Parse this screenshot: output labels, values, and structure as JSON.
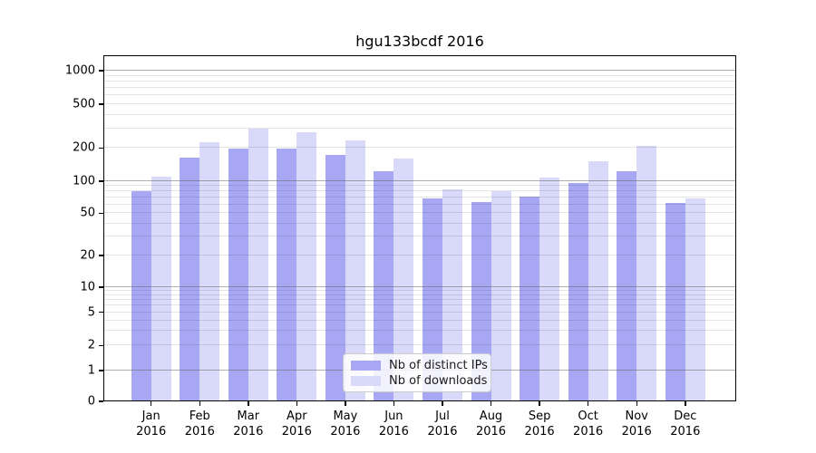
{
  "title": "hgu133bcdf 2016",
  "legend": {
    "items": [
      {
        "label": "Nb of distinct IPs",
        "color": "#a7a7f4"
      },
      {
        "label": "Nb of downloads",
        "color": "#d9d9fa"
      }
    ]
  },
  "chart_data": {
    "type": "bar",
    "title": "hgu133bcdf 2016",
    "categories": [
      "Jan",
      "Feb",
      "Mar",
      "Apr",
      "May",
      "Jun",
      "Jul",
      "Aug",
      "Sep",
      "Oct",
      "Nov",
      "Dec"
    ],
    "category_year": "2016",
    "series": [
      {
        "name": "Nb of distinct IPs",
        "color": "#a7a7f4",
        "values": [
          80,
          165,
          197,
          197,
          172,
          124,
          69,
          64,
          72,
          96,
          123,
          62
        ]
      },
      {
        "name": "Nb of downloads",
        "color": "#d9d9fa",
        "values": [
          110,
          225,
          300,
          280,
          235,
          162,
          84,
          80,
          108,
          152,
          210,
          69
        ]
      }
    ],
    "yscale": "symlog",
    "yticks": [
      0,
      1,
      2,
      5,
      10,
      20,
      50,
      100,
      200,
      500,
      1000
    ],
    "minor_gridlines": [
      2,
      3,
      4,
      5,
      6,
      7,
      8,
      9,
      20,
      30,
      40,
      50,
      60,
      70,
      80,
      90,
      200,
      300,
      400,
      500,
      600,
      700,
      800,
      900
    ],
    "major_gridlines": [
      1,
      10,
      100,
      1000
    ],
    "ylim": [
      0,
      1400
    ],
    "grid": true,
    "grid_above_bars": true,
    "legend_position": "lower-center"
  }
}
